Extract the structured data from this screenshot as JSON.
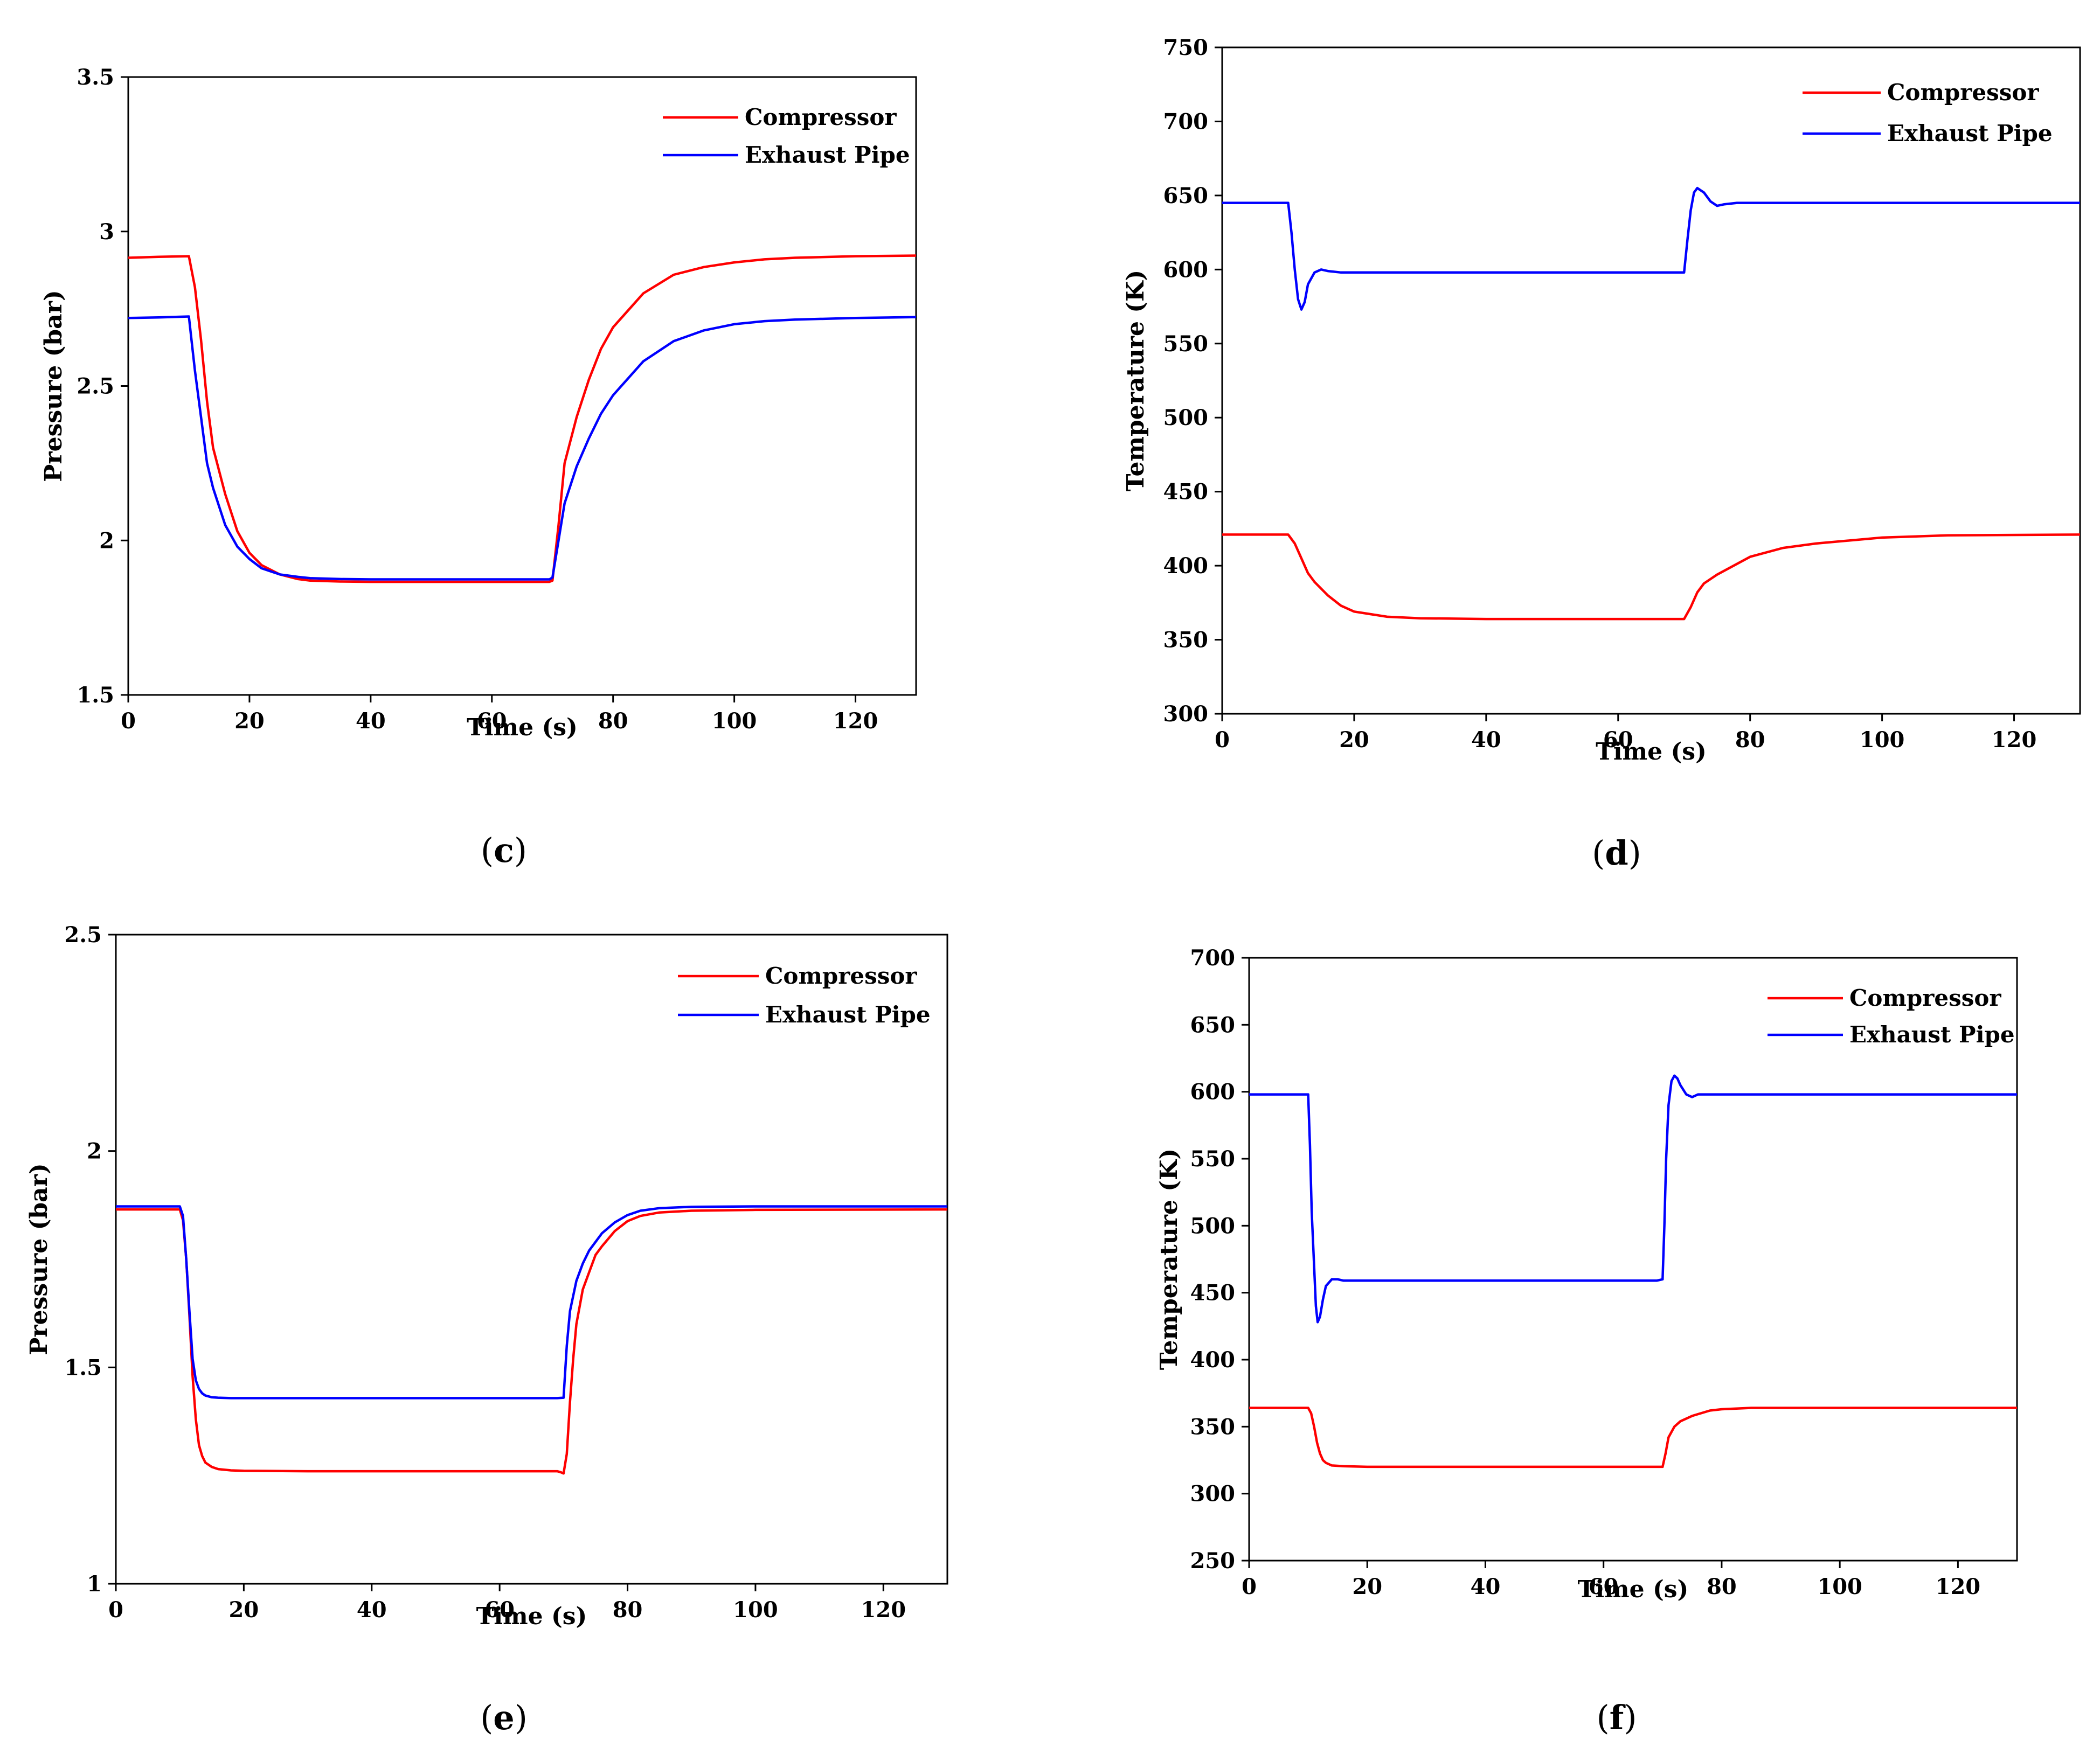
{
  "chart_data": [
    {
      "id": "c",
      "type": "line",
      "panel_label": "c",
      "xlabel": "Time (s)",
      "ylabel": "Pressure (bar)",
      "xlim": [
        0,
        130
      ],
      "ylim": [
        1.5,
        3.5
      ],
      "xticks": [
        0,
        20,
        40,
        60,
        80,
        100,
        120
      ],
      "yticks": [
        1.5,
        2,
        2.5,
        3,
        3.5
      ],
      "yticklabels": [
        "1.5",
        "2",
        "2.5",
        "3",
        "3.5"
      ],
      "legend_position": "top-right",
      "series": [
        {
          "name": "Compressor",
          "color": "#ff0000",
          "x": [
            0,
            5,
            10,
            11,
            12,
            13,
            14,
            16,
            18,
            20,
            22,
            25,
            28,
            30,
            35,
            40,
            50,
            60,
            69.5,
            70,
            71,
            72,
            74,
            76,
            78,
            80,
            85,
            90,
            95,
            100,
            105,
            110,
            120,
            130
          ],
          "y": [
            2.915,
            2.918,
            2.92,
            2.82,
            2.65,
            2.45,
            2.3,
            2.15,
            2.03,
            1.96,
            1.92,
            1.89,
            1.875,
            1.87,
            1.867,
            1.866,
            1.866,
            1.866,
            1.866,
            1.87,
            2.05,
            2.25,
            2.4,
            2.52,
            2.62,
            2.69,
            2.8,
            2.86,
            2.885,
            2.9,
            2.91,
            2.915,
            2.92,
            2.922
          ]
        },
        {
          "name": "Exhaust Pipe",
          "color": "#0000ff",
          "x": [
            0,
            5,
            10,
            11,
            12,
            13,
            14,
            16,
            18,
            20,
            22,
            25,
            28,
            30,
            35,
            40,
            50,
            60,
            69.5,
            70,
            71,
            72,
            74,
            76,
            78,
            80,
            85,
            90,
            95,
            100,
            105,
            110,
            120,
            130
          ],
          "y": [
            2.72,
            2.722,
            2.725,
            2.55,
            2.4,
            2.25,
            2.17,
            2.05,
            1.98,
            1.94,
            1.91,
            1.89,
            1.882,
            1.878,
            1.875,
            1.874,
            1.874,
            1.874,
            1.874,
            1.88,
            2.0,
            2.12,
            2.24,
            2.33,
            2.41,
            2.47,
            2.58,
            2.645,
            2.68,
            2.7,
            2.71,
            2.715,
            2.72,
            2.723
          ]
        }
      ]
    },
    {
      "id": "d",
      "type": "line",
      "panel_label": "d",
      "xlabel": "Time (s)",
      "ylabel": "Temperature (K)",
      "xlim": [
        0,
        130
      ],
      "ylim": [
        300,
        750
      ],
      "xticks": [
        0,
        20,
        40,
        60,
        80,
        100,
        120
      ],
      "yticks": [
        300,
        350,
        400,
        450,
        500,
        550,
        600,
        650,
        700,
        750
      ],
      "yticklabels": [
        "300",
        "350",
        "400",
        "450",
        "500",
        "550",
        "600",
        "650",
        "700",
        "750"
      ],
      "legend_position": "top-right",
      "series": [
        {
          "name": "Compressor",
          "color": "#ff0000",
          "x": [
            0,
            5,
            10,
            11,
            12,
            13,
            14,
            16,
            18,
            20,
            25,
            30,
            40,
            50,
            60,
            70,
            71,
            72,
            73,
            75,
            80,
            85,
            90,
            100,
            110,
            130
          ],
          "y": [
            421,
            421,
            421,
            415,
            405,
            395,
            389,
            380,
            373,
            369,
            365.5,
            364.5,
            364,
            364,
            364,
            364,
            372,
            382,
            388,
            394,
            406,
            412,
            415,
            419,
            420.5,
            421
          ]
        },
        {
          "name": "Exhaust Pipe",
          "color": "#0000ff",
          "x": [
            0,
            5,
            10,
            10.5,
            11,
            11.5,
            12,
            12.5,
            13,
            14,
            15,
            16,
            18,
            20,
            30,
            50,
            60,
            70,
            70.5,
            71,
            71.5,
            72,
            73,
            74,
            75,
            76,
            78,
            80,
            100,
            130
          ],
          "y": [
            645,
            645,
            645,
            625,
            600,
            580,
            573,
            578,
            590,
            598,
            600,
            599,
            598,
            598,
            598,
            598,
            598,
            598,
            620,
            640,
            652,
            655,
            652,
            646,
            643,
            644,
            645,
            645,
            645,
            645
          ]
        }
      ]
    },
    {
      "id": "e",
      "type": "line",
      "panel_label": "e",
      "xlabel": "Time (s)",
      "ylabel": "Pressure (bar)",
      "xlim": [
        0,
        130
      ],
      "ylim": [
        1,
        2.5
      ],
      "xticks": [
        0,
        20,
        40,
        60,
        80,
        100,
        120
      ],
      "yticks": [
        1,
        1.5,
        2,
        2.5
      ],
      "yticklabels": [
        "1",
        "1.5",
        "2",
        "2.5"
      ],
      "legend_position": "top-right",
      "series": [
        {
          "name": "Compressor",
          "color": "#ff0000",
          "x": [
            0,
            5,
            10,
            10.5,
            11,
            11.5,
            12,
            12.5,
            13,
            13.5,
            14,
            15,
            16,
            18,
            20,
            30,
            50,
            69,
            69.5,
            70,
            70.5,
            71,
            71.5,
            72,
            73,
            74,
            75,
            76,
            78,
            80,
            82,
            85,
            90,
            100,
            130
          ],
          "y": [
            1.865,
            1.865,
            1.865,
            1.84,
            1.75,
            1.62,
            1.48,
            1.38,
            1.32,
            1.295,
            1.28,
            1.27,
            1.265,
            1.262,
            1.261,
            1.26,
            1.26,
            1.26,
            1.258,
            1.255,
            1.3,
            1.42,
            1.52,
            1.6,
            1.68,
            1.72,
            1.76,
            1.78,
            1.815,
            1.838,
            1.85,
            1.858,
            1.862,
            1.864,
            1.865
          ]
        },
        {
          "name": "Exhaust Pipe",
          "color": "#0000ff",
          "x": [
            0,
            5,
            10,
            10.5,
            11,
            11.5,
            12,
            12.5,
            13,
            13.5,
            14,
            15,
            16,
            18,
            20,
            30,
            50,
            69,
            70,
            70.5,
            71,
            72,
            73,
            74,
            75,
            76,
            78,
            80,
            82,
            85,
            90,
            100,
            130
          ],
          "y": [
            1.872,
            1.872,
            1.872,
            1.85,
            1.75,
            1.63,
            1.52,
            1.47,
            1.45,
            1.44,
            1.435,
            1.431,
            1.43,
            1.429,
            1.429,
            1.429,
            1.429,
            1.429,
            1.43,
            1.55,
            1.63,
            1.7,
            1.74,
            1.77,
            1.79,
            1.81,
            1.835,
            1.852,
            1.862,
            1.868,
            1.871,
            1.872,
            1.872
          ]
        }
      ]
    },
    {
      "id": "f",
      "type": "line",
      "panel_label": "f",
      "xlabel": "Time (s)",
      "ylabel": "Temperature (K)",
      "xlim": [
        0,
        130
      ],
      "ylim": [
        250,
        700
      ],
      "xticks": [
        0,
        20,
        40,
        60,
        80,
        100,
        120
      ],
      "yticks": [
        250,
        300,
        350,
        400,
        450,
        500,
        550,
        600,
        650,
        700
      ],
      "yticklabels": [
        "250",
        "300",
        "350",
        "400",
        "450",
        "500",
        "550",
        "600",
        "650",
        "700"
      ],
      "legend_position": "top-right",
      "series": [
        {
          "name": "Compressor",
          "color": "#ff0000",
          "x": [
            0,
            5,
            10,
            10.5,
            11,
            11.5,
            12,
            12.5,
            13,
            14,
            16,
            20,
            30,
            50,
            69,
            70,
            70.5,
            71,
            72,
            73,
            75,
            78,
            80,
            85,
            90,
            100,
            130
          ],
          "y": [
            364,
            364,
            364,
            360,
            350,
            338,
            330,
            325,
            323,
            321,
            320.5,
            320,
            320,
            320,
            320,
            320,
            330,
            342,
            350,
            354,
            358,
            362,
            363,
            364,
            364,
            364,
            364
          ]
        },
        {
          "name": "Exhaust Pipe",
          "color": "#0000ff",
          "x": [
            0,
            5,
            10,
            10.3,
            10.6,
            11,
            11.3,
            11.6,
            12,
            12.5,
            13,
            14,
            15,
            16,
            18,
            20,
            30,
            50,
            69,
            70,
            70.3,
            70.6,
            71,
            71.5,
            72,
            72.5,
            73,
            74,
            75,
            76,
            78,
            80,
            100,
            130
          ],
          "y": [
            598,
            598,
            598,
            560,
            510,
            470,
            440,
            428,
            432,
            445,
            455,
            460,
            460,
            459,
            459,
            459,
            459,
            459,
            459,
            460,
            500,
            550,
            590,
            608,
            612,
            610,
            605,
            598,
            596,
            598,
            598,
            598,
            598,
            598
          ]
        }
      ]
    }
  ]
}
